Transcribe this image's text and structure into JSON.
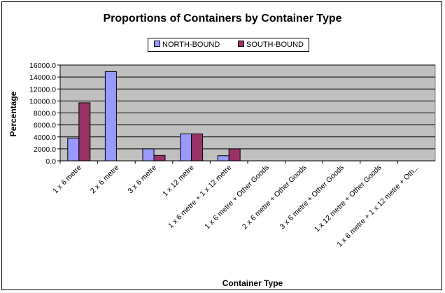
{
  "colors": {
    "plot_bg": "#c0c0c0",
    "north": "#9999ff",
    "south": "#993366",
    "grid": "#000000"
  },
  "chart_data": {
    "type": "bar",
    "title": "Proportions of Containers by Container Type",
    "xlabel": "Container Type",
    "ylabel": "Percentage",
    "ylim": [
      0,
      16000
    ],
    "y_ticks": [
      "0.0",
      "2000.0",
      "4000.0",
      "6000.0",
      "8000.0",
      "10000.0",
      "12000.0",
      "14000.0",
      "16000.0"
    ],
    "grid": true,
    "legend_position": "top-center",
    "categories": [
      "1 x 6 metre",
      "2 x 6 metre",
      "3 x 6 metre",
      "1 x 12 metre",
      "1 x 6 metre + 1 x 12 metre",
      "1 x 6 metre + Other Goods",
      "2 x 6 metre + Other Goods",
      "3 x 6 metre + Other Goods",
      "1 x 12 metre + Other Goods",
      "1 x 6 metre + 1 x 12 metre + Oth..."
    ],
    "series": [
      {
        "name": "NORTH-BOUND",
        "values": [
          3800,
          14900,
          2000,
          4500,
          850,
          0,
          0,
          0,
          0,
          0
        ]
      },
      {
        "name": "SOUTH-BOUND",
        "values": [
          9700,
          0,
          900,
          4500,
          2000,
          0,
          0,
          0,
          0,
          0
        ]
      }
    ]
  }
}
